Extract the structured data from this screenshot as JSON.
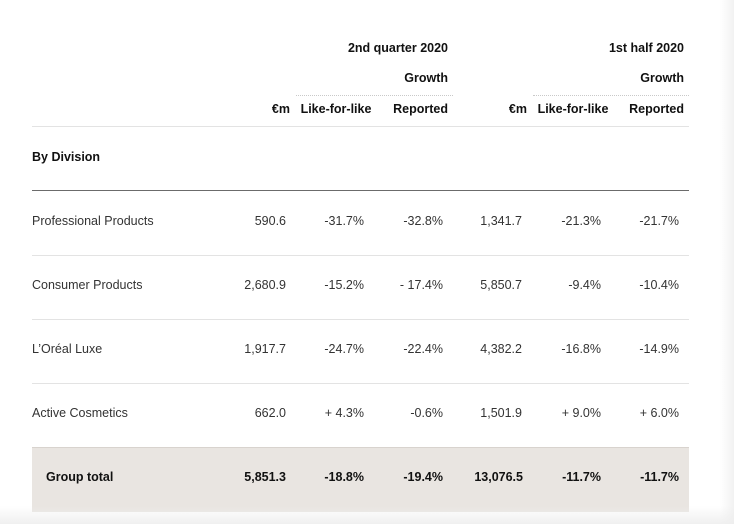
{
  "table": {
    "period_q2": "2nd quarter 2020",
    "period_h1": "1st half 2020",
    "growth_q2": "Growth",
    "growth_h1": "Growth",
    "col_value_q2": "€m",
    "col_lfl_q2": "Like-for-like",
    "col_reported_q2": "Reported",
    "col_value_h1": "€m",
    "col_lfl_h1": "Like-for-like",
    "col_reported_h1": "Reported",
    "section_label": "By Division",
    "rows": [
      {
        "name": "Professional Products",
        "q2_value": "590.6",
        "q2_lfl": "-31.7%",
        "q2_reported": "-32.8%",
        "h1_value": "1,341.7",
        "h1_lfl": "-21.3%",
        "h1_reported": "-21.7%"
      },
      {
        "name": "Consumer Products",
        "q2_value": "2,680.9",
        "q2_lfl": "-15.2%",
        "q2_reported": "- 17.4%",
        "h1_value": "5,850.7",
        "h1_lfl": "-9.4%",
        "h1_reported": "-10.4%"
      },
      {
        "name": "L’Oréal Luxe",
        "q2_value": "1,917.7",
        "q2_lfl": "-24.7%",
        "q2_reported": "-22.4%",
        "h1_value": "4,382.2",
        "h1_lfl": "-16.8%",
        "h1_reported": "-14.9%"
      },
      {
        "name": "Active Cosmetics",
        "q2_value": "662.0",
        "q2_lfl": "+ 4.3%",
        "q2_reported": "-0.6%",
        "h1_value": "1,501.9",
        "h1_lfl": "+ 9.0%",
        "h1_reported": "+ 6.0%"
      }
    ],
    "total": {
      "name": "Group total",
      "q2_value": "5,851.3",
      "q2_lfl": "-18.8%",
      "q2_reported": "-19.4%",
      "h1_value": "13,076.5",
      "h1_lfl": "-11.7%",
      "h1_reported": "-11.7%"
    }
  }
}
